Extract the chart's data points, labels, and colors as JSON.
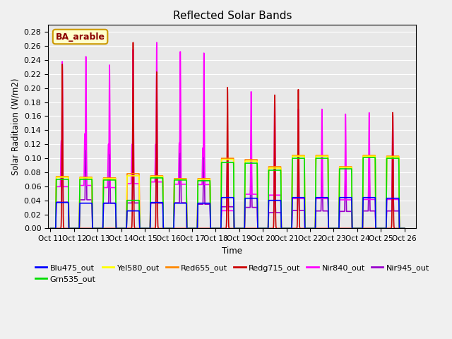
{
  "title": "Reflected Solar Bands",
  "xlabel": "Time",
  "ylabel": "Solar Raditaion (W/m2)",
  "annotation": "BA_arable",
  "xlim": [
    -0.1,
    15.5
  ],
  "ylim": [
    0.0,
    0.29
  ],
  "yticks": [
    0.0,
    0.02,
    0.04,
    0.06,
    0.08,
    0.1,
    0.12,
    0.14,
    0.16,
    0.18,
    0.2,
    0.22,
    0.24,
    0.26,
    0.28
  ],
  "xtick_labels": [
    "Oct 11",
    "Oct 12",
    "Oct 13",
    "Oct 14",
    "Oct 15",
    "Oct 16",
    "Oct 17",
    "Oct 18",
    "Oct 19",
    "Oct 20",
    "Oct 21",
    "Oct 22",
    "Oct 23",
    "Oct 24",
    "Oct 25",
    "Oct 26"
  ],
  "xtick_positions": [
    0,
    1,
    2,
    3,
    4,
    5,
    6,
    7,
    8,
    9,
    10,
    11,
    12,
    13,
    14,
    15
  ],
  "series": {
    "Blu475_out": {
      "color": "#0000ff",
      "lw": 1.2
    },
    "Grn535_out": {
      "color": "#00dd00",
      "lw": 1.2
    },
    "Yel580_out": {
      "color": "#ffff00",
      "lw": 1.2
    },
    "Red655_out": {
      "color": "#ff8800",
      "lw": 1.2
    },
    "Redg715_out": {
      "color": "#cc0000",
      "lw": 1.2
    },
    "Nir840_out": {
      "color": "#ff00ff",
      "lw": 1.2
    },
    "Nir945_out": {
      "color": "#9900cc",
      "lw": 1.2
    }
  },
  "background_color": "#e8e8e8",
  "grid_color": "#ffffff",
  "n_days": 15,
  "pts_per_day": 200
}
